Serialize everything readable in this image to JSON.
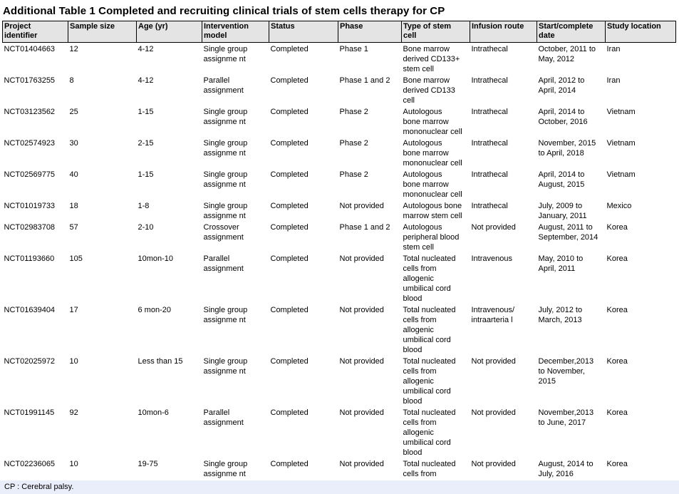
{
  "title": "Additional Table 1 Completed and recruiting clinical trials of stem cells therapy for CP",
  "footnote": "CP : Cerebral palsy.",
  "colors": {
    "header_bg": "#e4e4e4",
    "footnote_bg": "#eaedfa",
    "border": "#000000"
  },
  "table": {
    "columns": [
      "Project\nidentifier",
      "Sample size",
      "Age (yr)",
      "Intervention\nmodel",
      "Status",
      "Phase",
      "Type of stem\ncell",
      "Infusion route",
      "Start/complete\ndate",
      "Study location"
    ],
    "rows": [
      [
        "NCT01404663",
        "12",
        "4-12",
        "Single group\nassignme nt",
        "Completed",
        "Phase 1",
        "Bone marrow\nderived CD133+\nstem cell",
        "Intrathecal",
        "October, 2011 to\nMay, 2012",
        "Iran"
      ],
      [
        "NCT01763255",
        "8",
        "4-12",
        "Parallel\nassignment",
        "Completed",
        "Phase 1 and 2",
        "Bone marrow\nderived CD133\ncell",
        "Intrathecal",
        "April, 2012 to\nApril, 2014",
        "Iran"
      ],
      [
        "NCT03123562",
        "25",
        "1-15",
        "Single group\nassignme nt",
        "Completed",
        "Phase 2",
        "Autologous\nbone marrow\nmononuclear cell",
        "Intrathecal",
        "April, 2014 to\nOctober, 2016",
        "Vietnam"
      ],
      [
        "NCT02574923",
        "30",
        "2-15",
        "Single group\nassignme nt",
        "Completed",
        "Phase 2",
        "Autologous\nbone marrow\nmononuclear cell",
        "Intrathecal",
        "November, 2015\nto April, 2018",
        "Vietnam"
      ],
      [
        "NCT02569775",
        "40",
        "1-15",
        "Single group\nassignme nt",
        "Completed",
        "Phase 2",
        "Autologous\nbone marrow\nmononuclear cell",
        "Intrathecal",
        "April, 2014 to\nAugust, 2015",
        "Vietnam"
      ],
      [
        "NCT01019733",
        "18",
        "1-8",
        "Single group\nassignme nt",
        "Completed",
        "Not provided",
        "Autologous bone\nmarrow stem cell",
        "Intrathecal",
        "July, 2009 to\nJanuary, 2011",
        "Mexico"
      ],
      [
        "NCT02983708",
        "57",
        "2-10",
        "Crossover\nassignment",
        "Completed",
        "Phase 1 and 2",
        "Autologous\nperipheral blood\nstem cell",
        "Not provided",
        "August, 2011 to\nSeptember, 2014",
        "Korea"
      ],
      [
        "NCT01193660",
        "105",
        "10mon-10",
        "Parallel\nassignment",
        "Completed",
        "Not provided",
        "Total nucleated\ncells from\nallogenic\numbilical cord\nblood",
        "Intravenous",
        "May, 2010 to\nApril, 2011",
        "Korea"
      ],
      [
        "NCT01639404",
        "17",
        "6 mon-20",
        "Single group\nassignme nt",
        "Completed",
        "Not provided",
        "Total nucleated\ncells from\nallogenic\numbilical cord\nblood",
        "Intravenous/\nintraarteria l",
        "July, 2012 to\nMarch, 2013",
        "Korea"
      ],
      [
        "NCT02025972",
        "10",
        "Less than 15",
        "Single group\nassignme nt",
        "Completed",
        "Not provided",
        "Total nucleated\ncells from\nallogenic\numbilical cord\nblood",
        "Not provided",
        "December,2013\nto November,\n2015",
        "Korea"
      ],
      [
        "NCT01991145",
        "92",
        "10mon-6",
        "Parallel\nassignment",
        "Completed",
        "Not provided",
        "Total nucleated\ncells from\nallogenic\numbilical cord\nblood",
        "Not provided",
        "November,2013\nto June, 2017",
        "Korea"
      ],
      [
        "NCT02236065",
        "10",
        "19-75",
        "Single group\nassignme nt",
        "Completed",
        "Not provided",
        "Total nucleated\ncells from",
        "Not provided",
        "August, 2014 to\nJuly, 2016",
        "Korea"
      ]
    ]
  }
}
